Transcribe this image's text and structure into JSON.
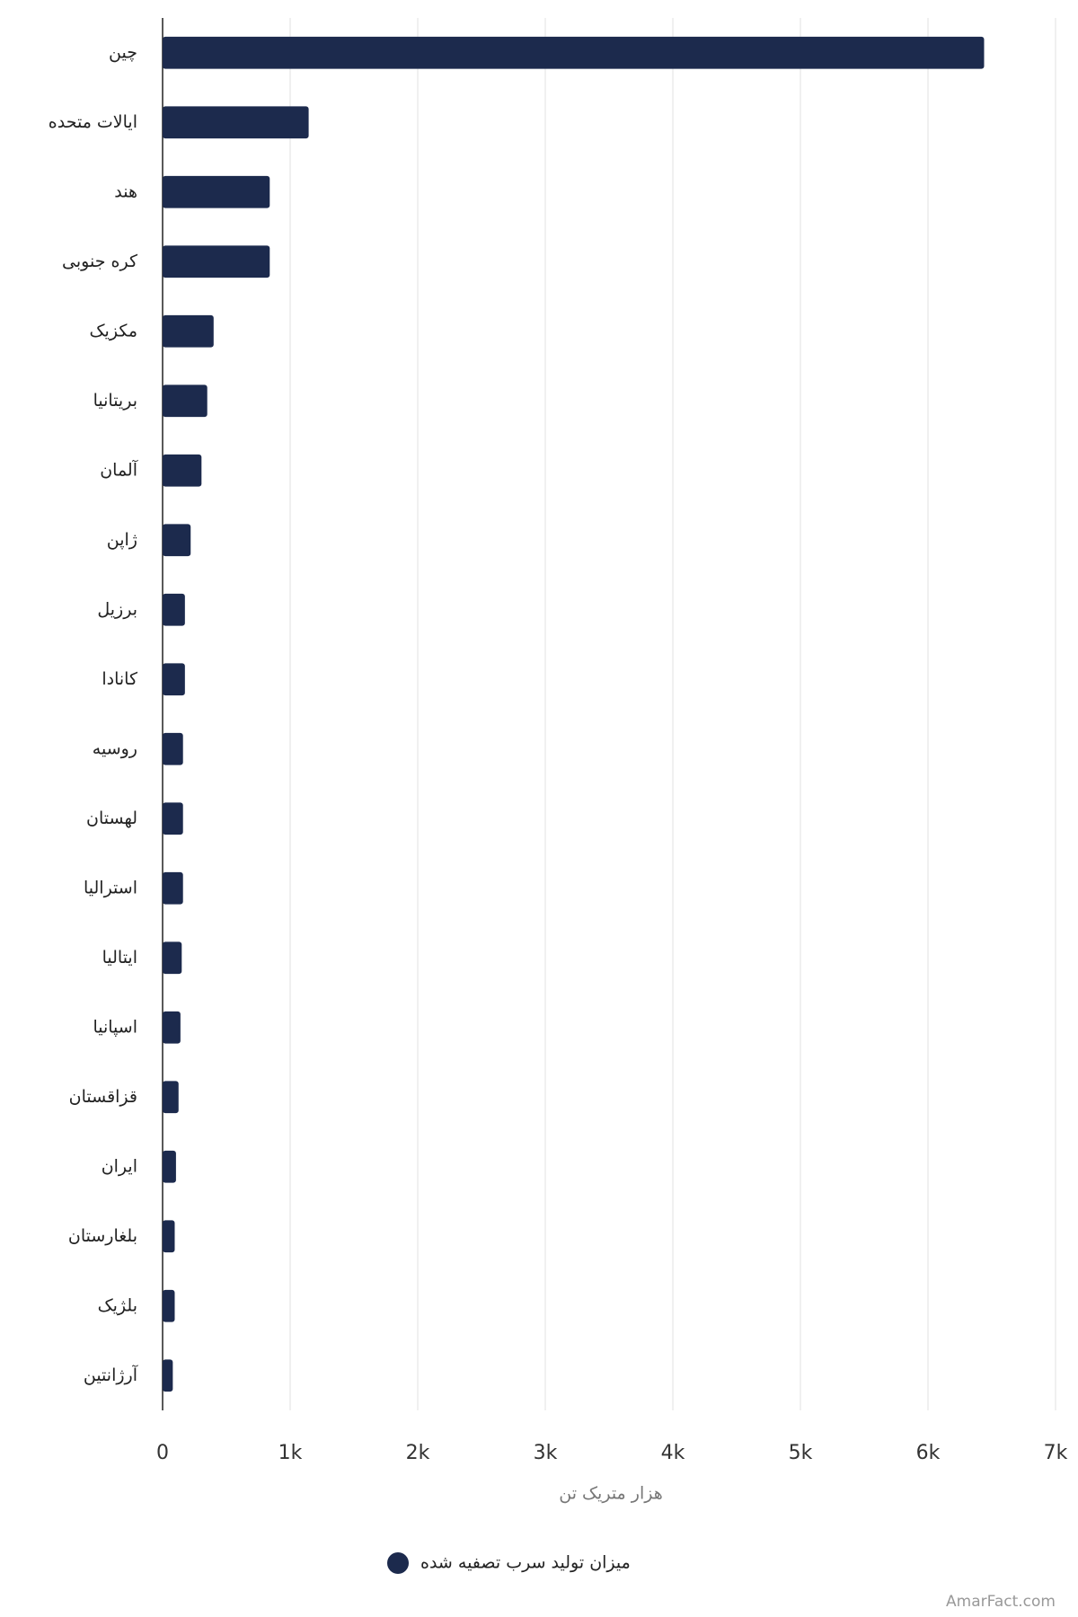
{
  "chart_data": {
    "type": "bar",
    "orientation": "horizontal",
    "categories": [
      "چین",
      "ایالات متحده",
      "هند",
      "کره جنوبی",
      "مکزیک",
      "بریتانیا",
      "آلمان",
      "ژاپن",
      "برزیل",
      "کانادا",
      "روسیه",
      "لهستان",
      "استرالیا",
      "ایتالیا",
      "اسپانیا",
      "قزاقستان",
      "ایران",
      "بلغارستان",
      "بلژیک",
      "آرژانتین"
    ],
    "series": [
      {
        "name": "میزان تولید سرب تصفیه شده",
        "color": "#1c2a4d",
        "values": [
          6440,
          1145,
          840,
          840,
          400,
          350,
          305,
          220,
          175,
          175,
          160,
          160,
          160,
          150,
          140,
          125,
          105,
          95,
          95,
          80
        ]
      }
    ],
    "xlabel": "هزار متریک تن",
    "xlim": [
      0,
      7000
    ],
    "xticks": [
      0,
      {
        "value": 1000,
        "label": "1k"
      },
      {
        "value": 2000,
        "label": "2k"
      },
      {
        "value": 3000,
        "label": "3k"
      },
      {
        "value": 4000,
        "label": "4k"
      },
      {
        "value": 5000,
        "label": "5k"
      },
      {
        "value": 6000,
        "label": "6k"
      },
      {
        "value": 7000,
        "label": "7k"
      }
    ],
    "grid": true,
    "legend": "bottom",
    "watermark": "AmarFact.com"
  }
}
